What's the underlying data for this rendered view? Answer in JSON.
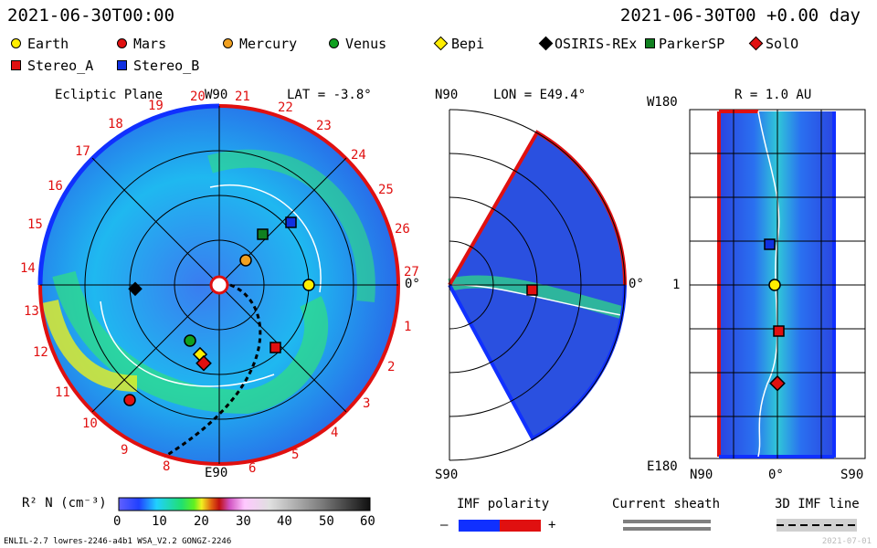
{
  "header": {
    "left_time": "2021-06-30T00:00",
    "right_time": "2021-06-30T00 +0.00 day"
  },
  "legend": [
    {
      "label": "Earth",
      "color": "#ffee00",
      "shape": "circle"
    },
    {
      "label": "Mars",
      "color": "#e01010",
      "shape": "circle"
    },
    {
      "label": "Mercury",
      "color": "#f0a020",
      "shape": "circle"
    },
    {
      "label": "Venus",
      "color": "#10a020",
      "shape": "circle"
    },
    {
      "label": "Bepi",
      "color": "#ffee00",
      "shape": "diamond"
    },
    {
      "label": "OSIRIS-REx",
      "color": "#000000",
      "shape": "diamond"
    },
    {
      "label": "ParkerSP",
      "color": "#108020",
      "shape": "square"
    },
    {
      "label": "SolO",
      "color": "#e01010",
      "shape": "diamond"
    },
    {
      "label": "Stereo_A",
      "color": "#e01010",
      "shape": "square"
    },
    {
      "label": "Stereo_B",
      "color": "#1030e0",
      "shape": "square"
    }
  ],
  "panel1": {
    "title": "Ecliptic Plane",
    "top_label": "W90",
    "lat": "LAT = -3.8°",
    "bottom_label": "E90",
    "right_label": "0°",
    "sectors": [
      "1",
      "2",
      "3",
      "4",
      "5",
      "6",
      "8",
      "9",
      "10",
      "11",
      "12",
      "13",
      "14",
      "15",
      "16",
      "17",
      "18",
      "19",
      "20",
      "21",
      "22",
      "23",
      "24",
      "25",
      "26",
      "27"
    ]
  },
  "panel2": {
    "top_left": "N90",
    "lon": "LON = E49.4°",
    "right_label": "0°",
    "bottom_left": "S90"
  },
  "panel3": {
    "top_left": "W180",
    "title": "R = 1.0 AU",
    "left_mid": "1",
    "bottom_left": "E180",
    "x_labels": [
      "N90",
      "0°",
      "S90"
    ]
  },
  "colorbar": {
    "label": "R² N (cm⁻³)",
    "ticks": [
      "0",
      "10",
      "20",
      "30",
      "40",
      "50",
      "60"
    ]
  },
  "imf": {
    "title": "IMF polarity",
    "minus": "–",
    "plus": "+",
    "sheath": "Current sheath",
    "line3d": "3D IMF line"
  },
  "footer": {
    "left": "ENLIL-2.7 lowres-2246-a4b1 WSA_V2.2 GONGZ-2246",
    "right": "2021-07-01"
  }
}
